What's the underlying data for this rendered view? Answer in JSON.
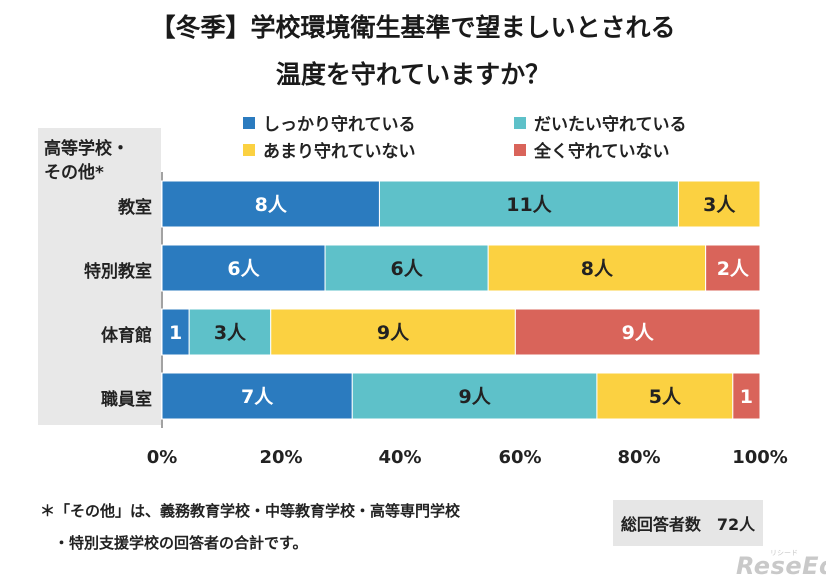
{
  "title_line1": "【冬季】学校環境衛生基準で望ましいとされる",
  "title_line2": "温度を守れていますか？",
  "category_header": [
    "高等学校・",
    "その他*"
  ],
  "legend": [
    {
      "label": "しっかり守れている",
      "color": "#2b7bbf"
    },
    {
      "label": "だいたい守れている",
      "color": "#5ec1c9"
    },
    {
      "label": "あまり守れていない",
      "color": "#fbd141"
    },
    {
      "label": "全く守れていない",
      "color": "#d9645a"
    }
  ],
  "chart_data": {
    "type": "bar",
    "orientation": "horizontal",
    "stacked": true,
    "normalized": true,
    "categories": [
      "教室",
      "特別教室",
      "体育館",
      "職員室"
    ],
    "series": [
      {
        "name": "しっかり守れている",
        "color": "#2b7bbf",
        "values": [
          8,
          6,
          1,
          7
        ],
        "labels": [
          "8人",
          "6人",
          "1",
          "7人"
        ]
      },
      {
        "name": "だいたい守れている",
        "color": "#5ec1c9",
        "values": [
          11,
          6,
          3,
          9
        ],
        "labels": [
          "11人",
          "6人",
          "3人",
          "9人"
        ]
      },
      {
        "name": "あまり守れていない",
        "color": "#fbd141",
        "values": [
          3,
          8,
          9,
          5
        ],
        "labels": [
          "3人",
          "8人",
          "9人",
          "5人"
        ]
      },
      {
        "name": "全く守れていない",
        "color": "#d9645a",
        "values": [
          0,
          2,
          9,
          1
        ],
        "labels": [
          "",
          "2人",
          "9人",
          "1"
        ]
      }
    ],
    "x_ticks": [
      "0%",
      "20%",
      "40%",
      "60%",
      "80%",
      "100%"
    ],
    "xlim": [
      0,
      100
    ],
    "legend_position": "top"
  },
  "footnote_line1": "＊「その他」は、義務教育学校・中等教育学校・高等専門学校",
  "footnote_line2": "・特別支援学校の回答者の合計です。",
  "total_label": "総回答者数",
  "total_value": "72人",
  "logo_text": "ReseEd",
  "logo_small": "リシード"
}
